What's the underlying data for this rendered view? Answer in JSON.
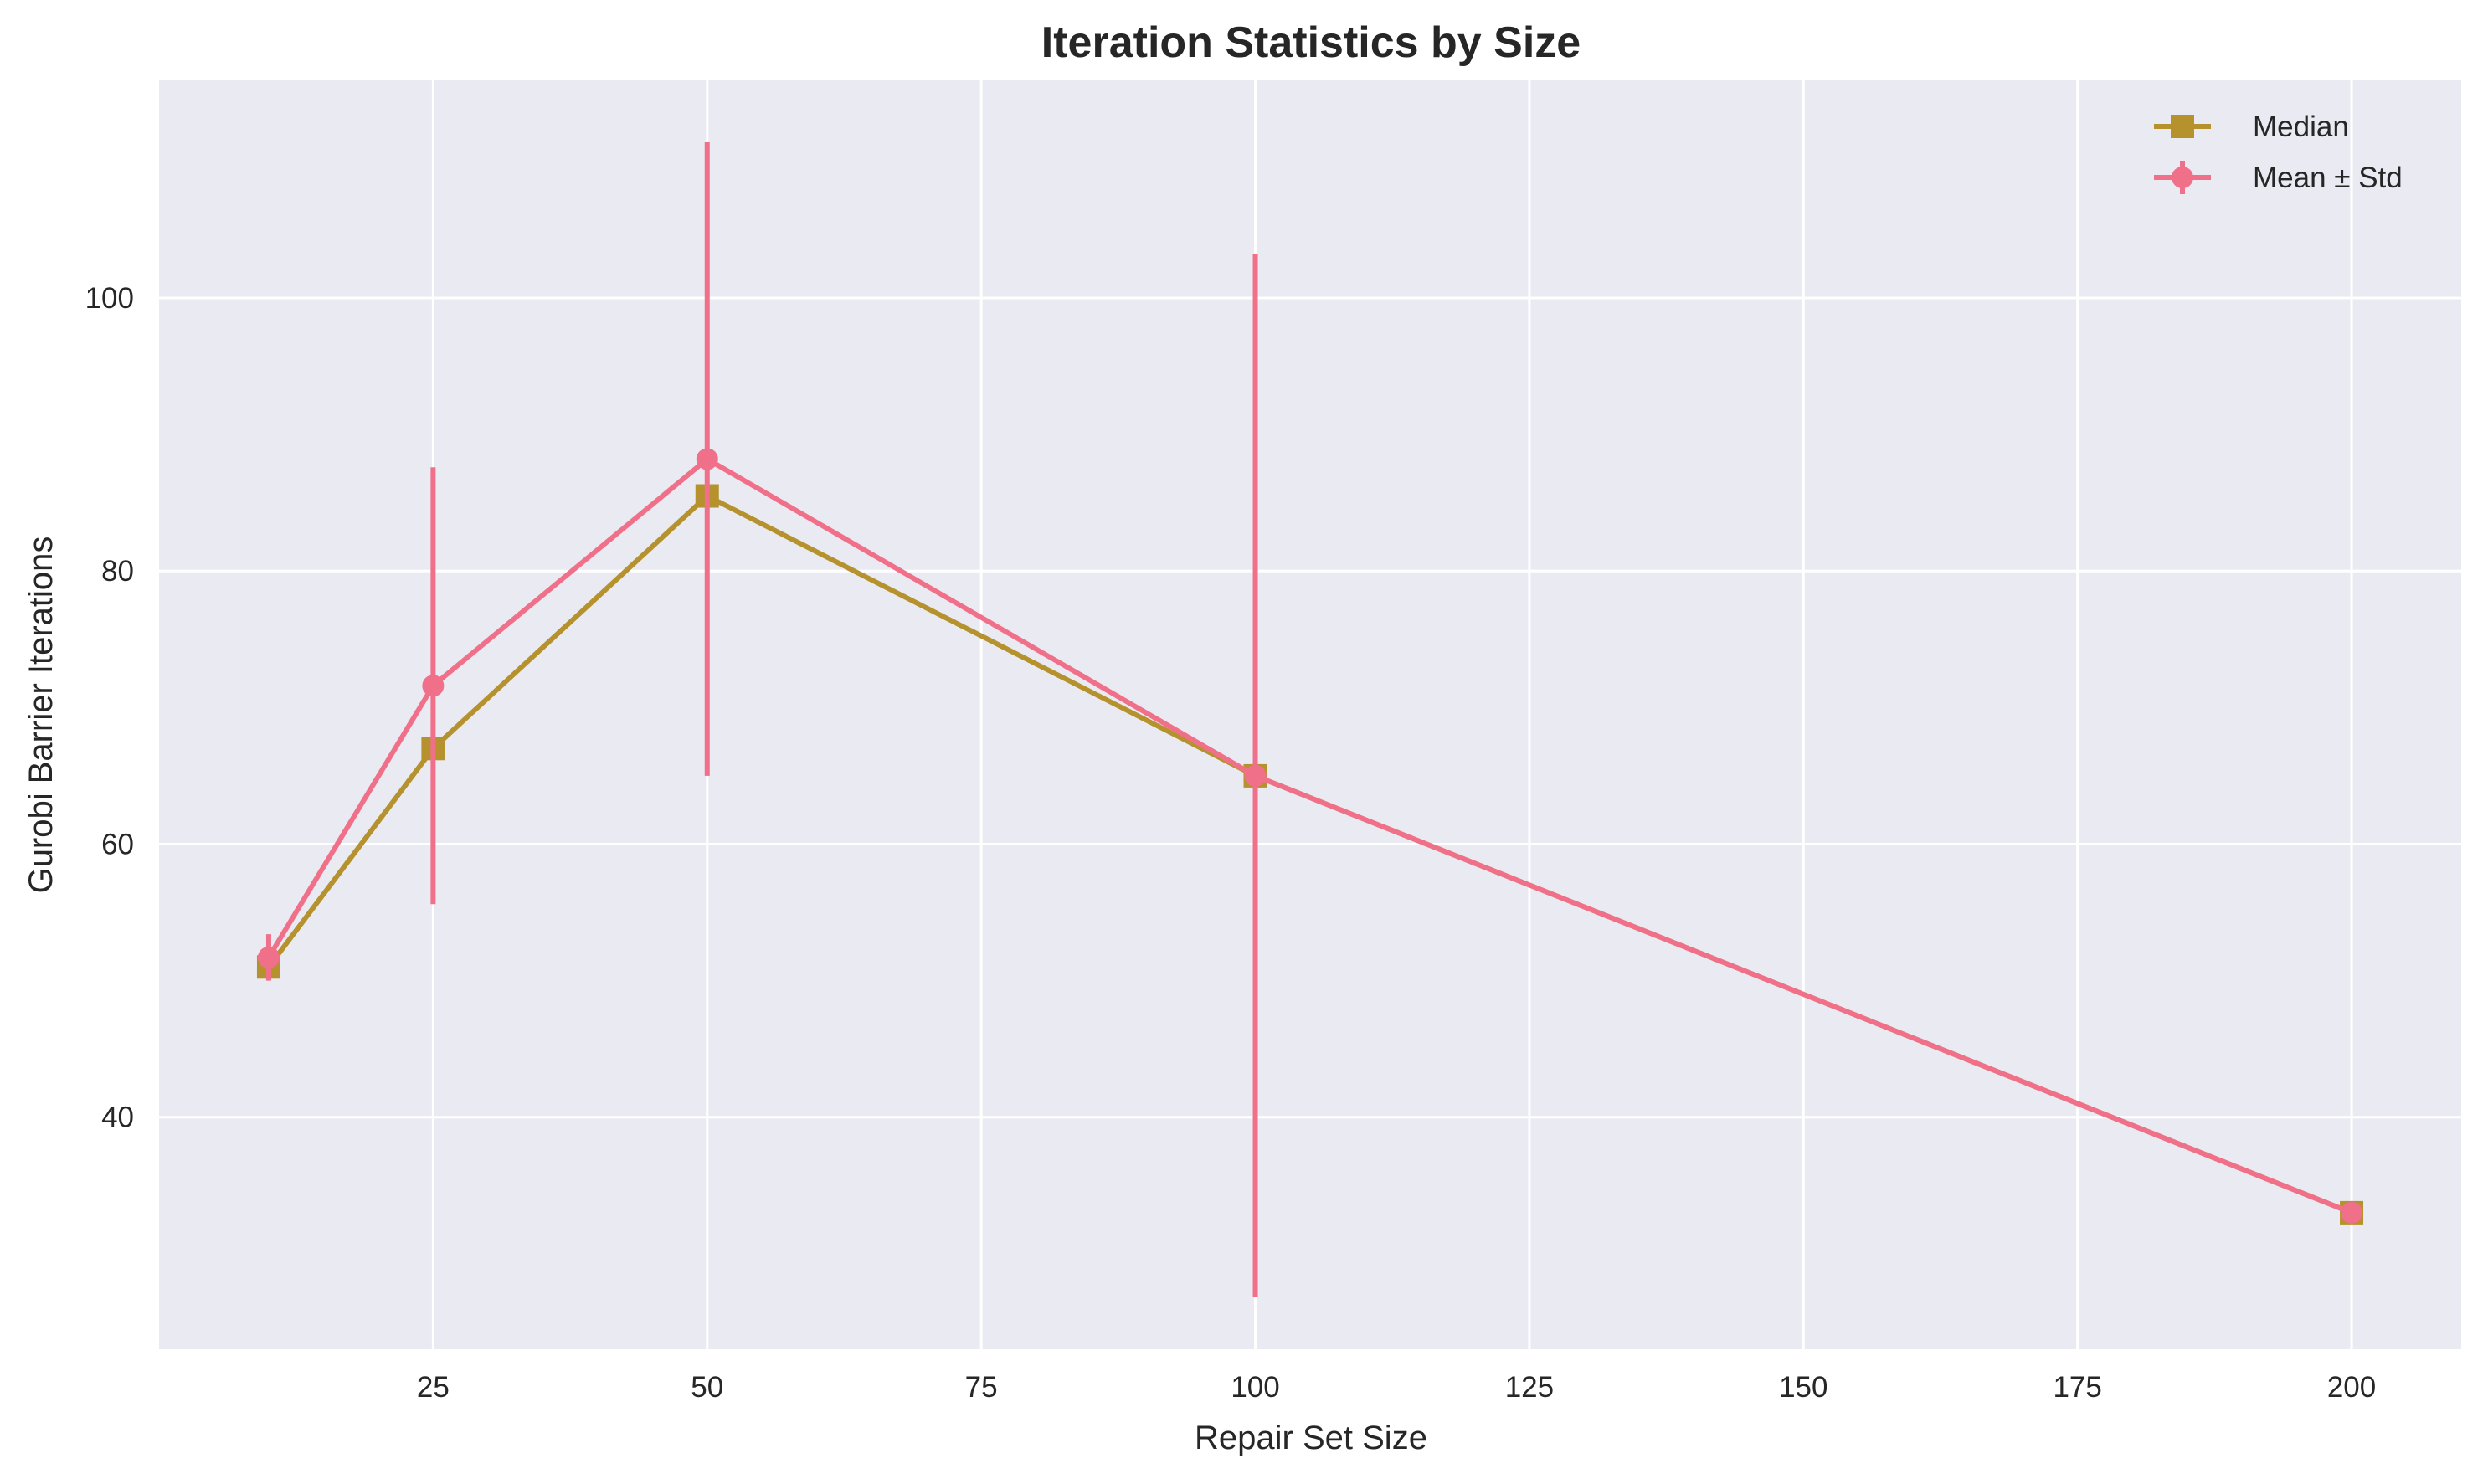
{
  "chart_data": {
    "type": "line",
    "title": "Iteration Statistics by Size",
    "xlabel": "Repair Set Size",
    "ylabel": "Gurobi Barrier Iterations",
    "xlim": [
      0,
      210
    ],
    "ylim": [
      23,
      116
    ],
    "xticks": [
      25,
      50,
      75,
      100,
      125,
      150,
      175,
      200
    ],
    "yticks": [
      40,
      60,
      80,
      100
    ],
    "grid": true,
    "legend_position": "top-right",
    "series": [
      {
        "name": "Median",
        "color": "#b5922e",
        "marker": "square",
        "x": [
          10,
          25,
          50,
          100,
          200
        ],
        "y": [
          51.0,
          67.0,
          85.5,
          65.0,
          33.0
        ]
      },
      {
        "name": "Mean ± Std",
        "color": "#f0708a",
        "marker": "circle",
        "x": [
          10,
          25,
          50,
          100,
          200
        ],
        "y": [
          51.7,
          71.6,
          88.2,
          65.0,
          33.0
        ],
        "yerr": [
          1.7,
          16.0,
          23.2,
          38.2,
          0
        ]
      }
    ]
  }
}
